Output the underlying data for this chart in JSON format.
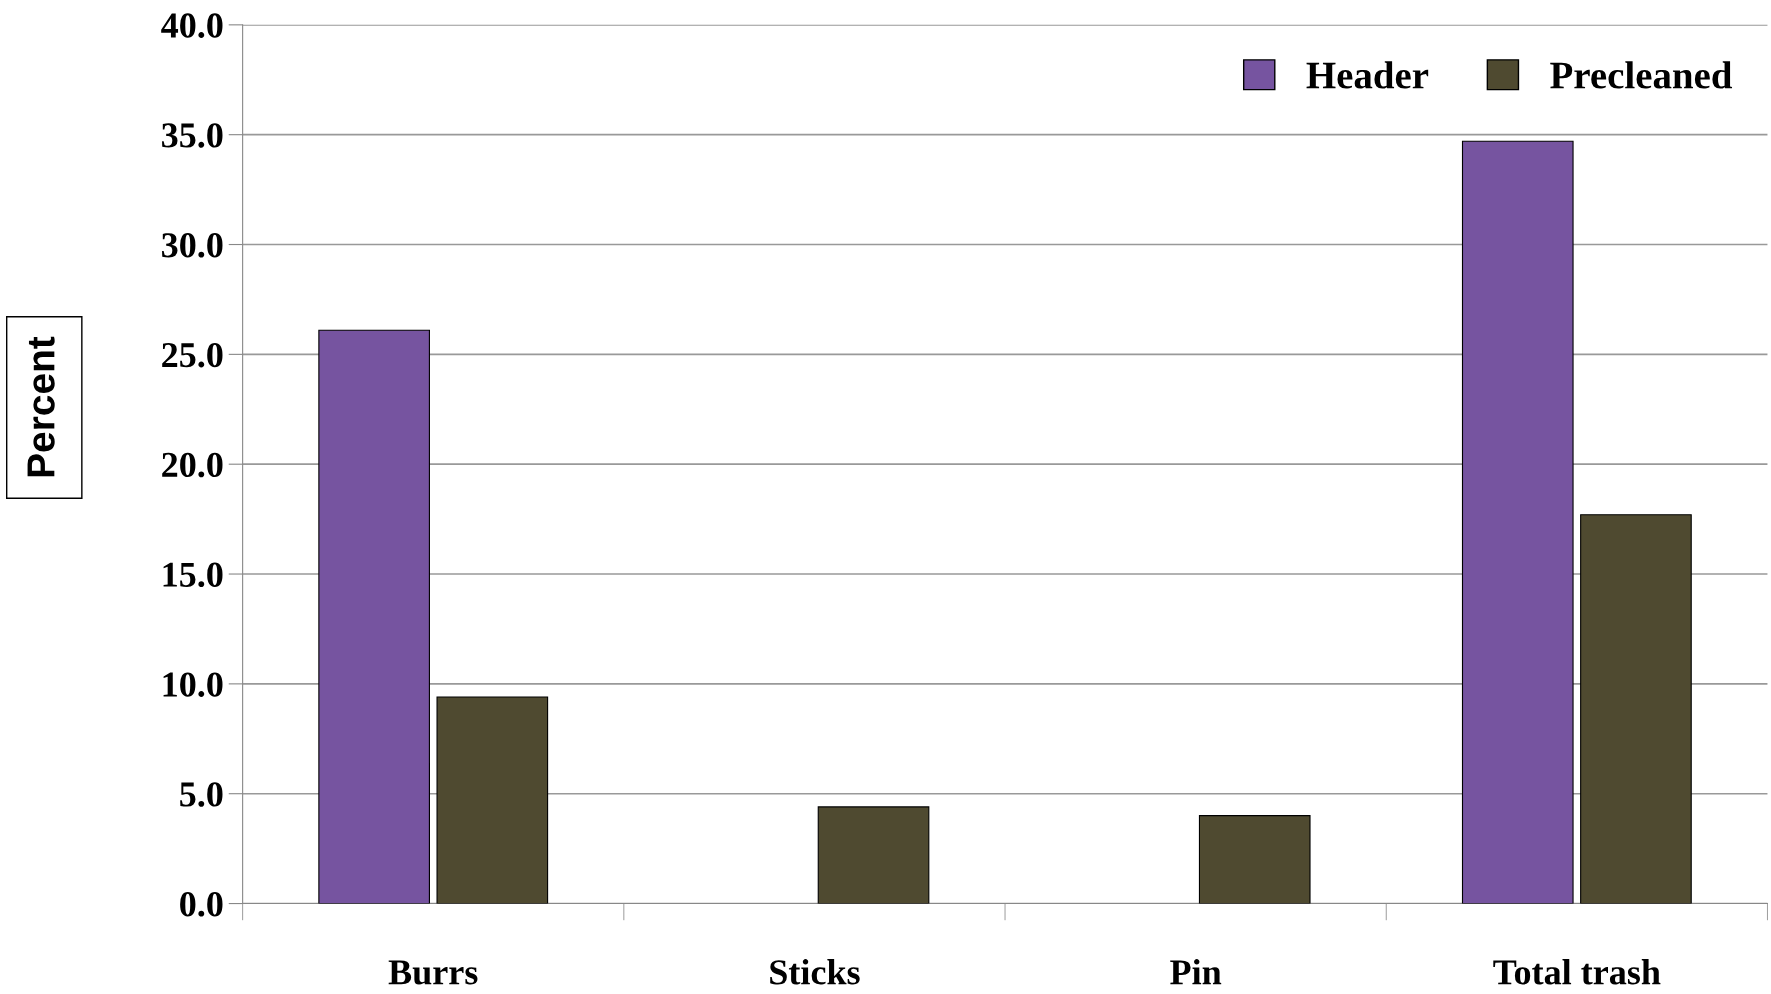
{
  "chart_data": {
    "type": "bar",
    "ylabel": "Percent",
    "categories": [
      "Burrs",
      "Sticks",
      "Pin",
      "Total trash"
    ],
    "series": [
      {
        "name": "Header",
        "color": "#7654a0",
        "values": [
          26.1,
          null,
          null,
          34.7
        ]
      },
      {
        "name": "Precleaned",
        "color": "#4f4a30",
        "values": [
          9.4,
          4.4,
          4.0,
          17.7
        ]
      }
    ],
    "ylim": [
      0,
      40
    ],
    "yticks": [
      {
        "value": 0,
        "label": "0.0"
      },
      {
        "value": 5,
        "label": "5.0"
      },
      {
        "value": 10,
        "label": "10.0"
      },
      {
        "value": 15,
        "label": "15.0"
      },
      {
        "value": 20,
        "label": "20.0"
      },
      {
        "value": 25,
        "label": "25.0"
      },
      {
        "value": 30,
        "label": "30.0"
      },
      {
        "value": 35,
        "label": "35.0"
      },
      {
        "value": 40,
        "label": "40.0"
      }
    ],
    "grid": "y",
    "legend": "top right"
  }
}
